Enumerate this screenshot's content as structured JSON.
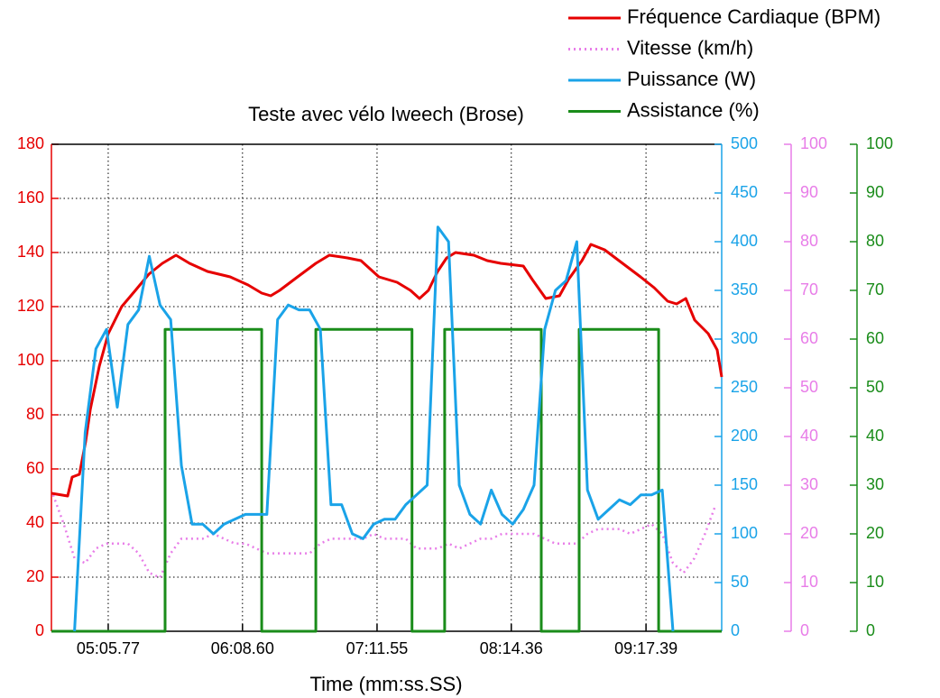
{
  "chart_data": {
    "type": "line",
    "title": "Teste avec vélo Iweech (Brose)",
    "x_label": "Time (mm:ss.SS)",
    "xlim": [
      279.2,
      592.8
    ],
    "xticks": [
      {
        "value": 305.77,
        "label": "05:05.77"
      },
      {
        "value": 368.6,
        "label": "06:08.60"
      },
      {
        "value": 431.55,
        "label": "07:11.55"
      },
      {
        "value": 494.36,
        "label": "08:14.36"
      },
      {
        "value": 557.39,
        "label": "09:17.39"
      }
    ],
    "ylim": [
      0,
      180
    ],
    "yticks": [
      0,
      20,
      40,
      60,
      80,
      100,
      120,
      140,
      160,
      180
    ],
    "y_color": "#e60000",
    "y2lim": [
      0,
      500
    ],
    "y2ticks": [
      0,
      50,
      100,
      150,
      200,
      250,
      300,
      350,
      400,
      450,
      500
    ],
    "y2_color": "#1aa3e8",
    "y3lim": [
      0,
      100
    ],
    "y3ticks": [
      0,
      10,
      20,
      30,
      40,
      50,
      60,
      70,
      80,
      90,
      100
    ],
    "y3_color": "#e87de8",
    "y4lim": [
      0,
      100
    ],
    "y4ticks": [
      0,
      10,
      20,
      30,
      40,
      50,
      60,
      70,
      80,
      90,
      100
    ],
    "y4_color": "#1a8c1a",
    "grid": true,
    "legend": "top-right",
    "series": [
      {
        "name": "Fréquence Cardiaque (BPM)",
        "color": "#e60000",
        "axis": "y",
        "style": "solid",
        "x": [
          279.2,
          286.8,
          288.9,
          292.3,
          295.2,
          297.4,
          301.6,
          305.8,
          312.1,
          318.5,
          324.8,
          331.1,
          337.5,
          343.8,
          352.2,
          362.8,
          371.2,
          377.6,
          381.8,
          386.0,
          394.4,
          402.9,
          409.2,
          417.7,
          424.0,
          432.4,
          440.9,
          447.2,
          451.4,
          455.6,
          459.9,
          464.1,
          468.3,
          476.8,
          483.1,
          489.4,
          500.0,
          504.2,
          510.5,
          516.9,
          521.1,
          527.4,
          531.6,
          538.0,
          546.4,
          554.8,
          561.2,
          567.5,
          571.7,
          576.0,
          580.2,
          586.5,
          590.7,
          592.8
        ],
        "values": [
          51,
          50,
          57,
          58,
          70,
          82,
          98,
          110,
          120,
          126,
          132,
          136,
          139,
          136,
          133,
          131,
          128,
          125,
          124,
          126,
          131,
          136,
          139,
          138,
          137,
          131,
          129,
          126,
          123,
          126,
          133,
          138,
          140,
          139,
          137,
          136,
          135,
          130,
          123,
          124,
          130,
          137,
          143,
          141,
          136,
          131,
          127,
          122,
          121,
          123,
          115,
          110,
          104,
          94
        ]
      },
      {
        "name": "Vitesse (km/h)",
        "color": "#e87de8",
        "axis": "y3",
        "style": "dotted",
        "x": [
          280,
          285,
          290,
          295,
          300,
          305,
          310,
          315,
          320,
          325,
          330,
          335,
          340,
          345,
          350,
          355,
          360,
          365,
          370,
          375,
          380,
          385,
          390,
          395,
          400,
          405,
          410,
          415,
          420,
          425,
          430,
          435,
          440,
          445,
          450,
          455,
          460,
          465,
          470,
          475,
          480,
          485,
          490,
          495,
          500,
          505,
          510,
          515,
          520,
          525,
          530,
          535,
          540,
          545,
          550,
          555,
          560,
          565,
          570,
          575,
          580,
          585,
          590
        ],
        "values": [
          28,
          22,
          15,
          14,
          17,
          18,
          18,
          18,
          16,
          12,
          11,
          16,
          19,
          19,
          19,
          20,
          19,
          18,
          18,
          17,
          16,
          16,
          16,
          16,
          16,
          18,
          19,
          19,
          19,
          19,
          20,
          19,
          19,
          19,
          17,
          17,
          17,
          18,
          17,
          18,
          19,
          19,
          20,
          20,
          20,
          20,
          19,
          18,
          18,
          18,
          20,
          21,
          21,
          21,
          20,
          21,
          22,
          20,
          14,
          12,
          15,
          20,
          26
        ]
      },
      {
        "name": "Puissance (W)",
        "color": "#1aa3e8",
        "axis": "y2",
        "style": "solid",
        "x": [
          280,
          285,
          290,
          295,
          300,
          305,
          310,
          315,
          320,
          325,
          330,
          335,
          340,
          345,
          350,
          355,
          360,
          365,
          370,
          375,
          380,
          385,
          390,
          395,
          400,
          405,
          410,
          415,
          420,
          425,
          430,
          435,
          440,
          445,
          450,
          455,
          460,
          465,
          470,
          475,
          480,
          485,
          490,
          495,
          500,
          505,
          510,
          515,
          520,
          525,
          530,
          535,
          540,
          545,
          550,
          555,
          560,
          565,
          570,
          575,
          580,
          585,
          590
        ],
        "values": [
          null,
          null,
          0,
          204,
          290,
          310,
          230,
          315,
          330,
          385,
          335,
          320,
          170,
          110,
          110,
          100,
          110,
          115,
          120,
          120,
          120,
          320,
          335,
          330,
          330,
          310,
          130,
          130,
          100,
          95,
          110,
          115,
          115,
          130,
          140,
          150,
          415,
          400,
          150,
          120,
          110,
          145,
          120,
          110,
          125,
          150,
          310,
          350,
          360,
          400,
          145,
          115,
          125,
          135,
          130,
          140,
          140,
          145,
          0,
          null,
          null,
          null,
          null
        ]
      },
      {
        "name": "Assistance (%)",
        "color": "#1a8c1a",
        "axis": "y4",
        "style": "solid",
        "x": [
          279.2,
          332.4,
          332.4,
          377.6,
          377.6,
          402.9,
          402.9,
          447.9,
          447.9,
          463.2,
          463.2,
          508.4,
          508.4,
          526.1,
          526.1,
          563.3,
          563.3,
          592.8
        ],
        "values": [
          0,
          0,
          62,
          62,
          0,
          0,
          62,
          62,
          0,
          0,
          62,
          62,
          0,
          0,
          62,
          62,
          0,
          0
        ]
      }
    ]
  }
}
